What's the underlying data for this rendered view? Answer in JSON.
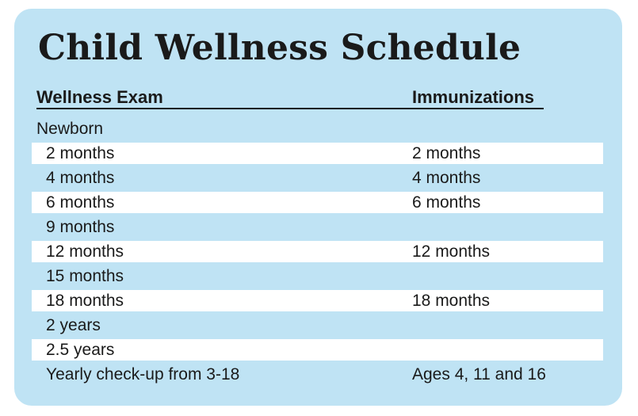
{
  "title": "Child Wellness Schedule",
  "headers": {
    "exam": "Wellness Exam",
    "immunizations": "Immunizations"
  },
  "rows": [
    {
      "exam": "Newborn",
      "imm": ""
    },
    {
      "exam": "2 months",
      "imm": "2 months"
    },
    {
      "exam": "4 months",
      "imm": "4 months"
    },
    {
      "exam": "6 months",
      "imm": "6 months"
    },
    {
      "exam": "9 months",
      "imm": ""
    },
    {
      "exam": "12 months",
      "imm": "12 months"
    },
    {
      "exam": "15 months",
      "imm": ""
    },
    {
      "exam": "18 months",
      "imm": "18 months"
    },
    {
      "exam": "2 years",
      "imm": ""
    },
    {
      "exam": "2.5 years",
      "imm": ""
    },
    {
      "exam": "Yearly check-up from 3-18",
      "imm": "Ages 4, 11 and 16"
    }
  ],
  "colors": {
    "background": "#bfe3f4",
    "stripe": "#ffffff",
    "text": "#1a1a1a"
  }
}
